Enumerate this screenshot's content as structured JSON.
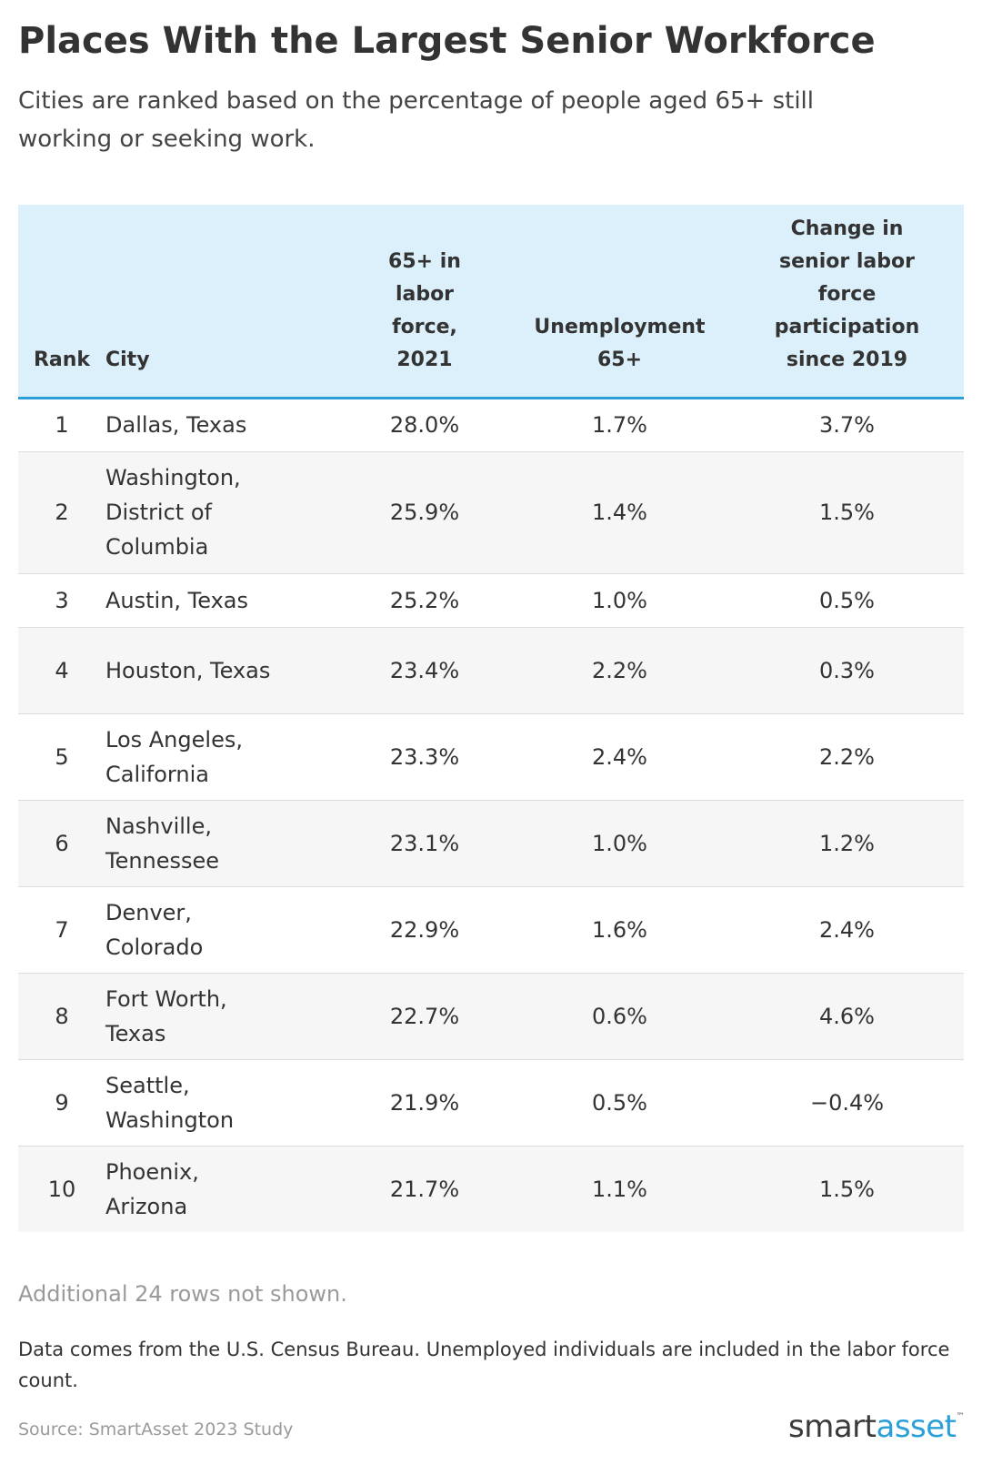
{
  "title": "Places With the Largest Senior Workforce",
  "subtitle": "Cities are ranked based on the percentage of people aged 65+ still working or seeking work.",
  "chart_data": {
    "type": "table",
    "columns": [
      "Rank",
      "City",
      "65+ in labor force, 2021",
      "Unemployment 65+",
      "Change in senior labor force participation since 2019"
    ],
    "rows": [
      {
        "rank": "1",
        "city": "Dallas, Texas",
        "labor_force_2021": "28.0%",
        "unemployment_65": "1.7%",
        "change_since_2019": "3.7%"
      },
      {
        "rank": "2",
        "city": "Washington, District of Columbia",
        "labor_force_2021": "25.9%",
        "unemployment_65": "1.4%",
        "change_since_2019": "1.5%"
      },
      {
        "rank": "3",
        "city": "Austin, Texas",
        "labor_force_2021": "25.2%",
        "unemployment_65": "1.0%",
        "change_since_2019": "0.5%"
      },
      {
        "rank": "4",
        "city": "Houston, Texas",
        "labor_force_2021": "23.4%",
        "unemployment_65": "2.2%",
        "change_since_2019": "0.3%"
      },
      {
        "rank": "5",
        "city": "Los Angeles, California",
        "labor_force_2021": "23.3%",
        "unemployment_65": "2.4%",
        "change_since_2019": "2.2%"
      },
      {
        "rank": "6",
        "city": "Nashville, Tennessee",
        "labor_force_2021": "23.1%",
        "unemployment_65": "1.0%",
        "change_since_2019": "1.2%"
      },
      {
        "rank": "7",
        "city": "Denver, Colorado",
        "labor_force_2021": "22.9%",
        "unemployment_65": "1.6%",
        "change_since_2019": "2.4%"
      },
      {
        "rank": "8",
        "city": "Fort Worth, Texas",
        "labor_force_2021": "22.7%",
        "unemployment_65": "0.6%",
        "change_since_2019": "4.6%"
      },
      {
        "rank": "9",
        "city": "Seattle, Washington",
        "labor_force_2021": "21.9%",
        "unemployment_65": "0.5%",
        "change_since_2019": "−0.4%"
      },
      {
        "rank": "10",
        "city": "Phoenix, Arizona",
        "labor_force_2021": "21.7%",
        "unemployment_65": "1.1%",
        "change_since_2019": "1.5%"
      }
    ]
  },
  "notes": {
    "rows_hidden": "Additional 24 rows not shown.",
    "data_note": "Data comes from the U.S. Census Bureau. Unemployed individuals are included in the labor force count.",
    "source": "Source: SmartAsset 2023 Study"
  },
  "logo": {
    "part1": "smart",
    "part2": "asset",
    "tm": "™"
  },
  "colors": {
    "header_bg": "#dbf0fb",
    "header_rule": "#2b9fd8",
    "stripe": "#f6f6f6",
    "logo_accent": "#2b9fd8"
  }
}
